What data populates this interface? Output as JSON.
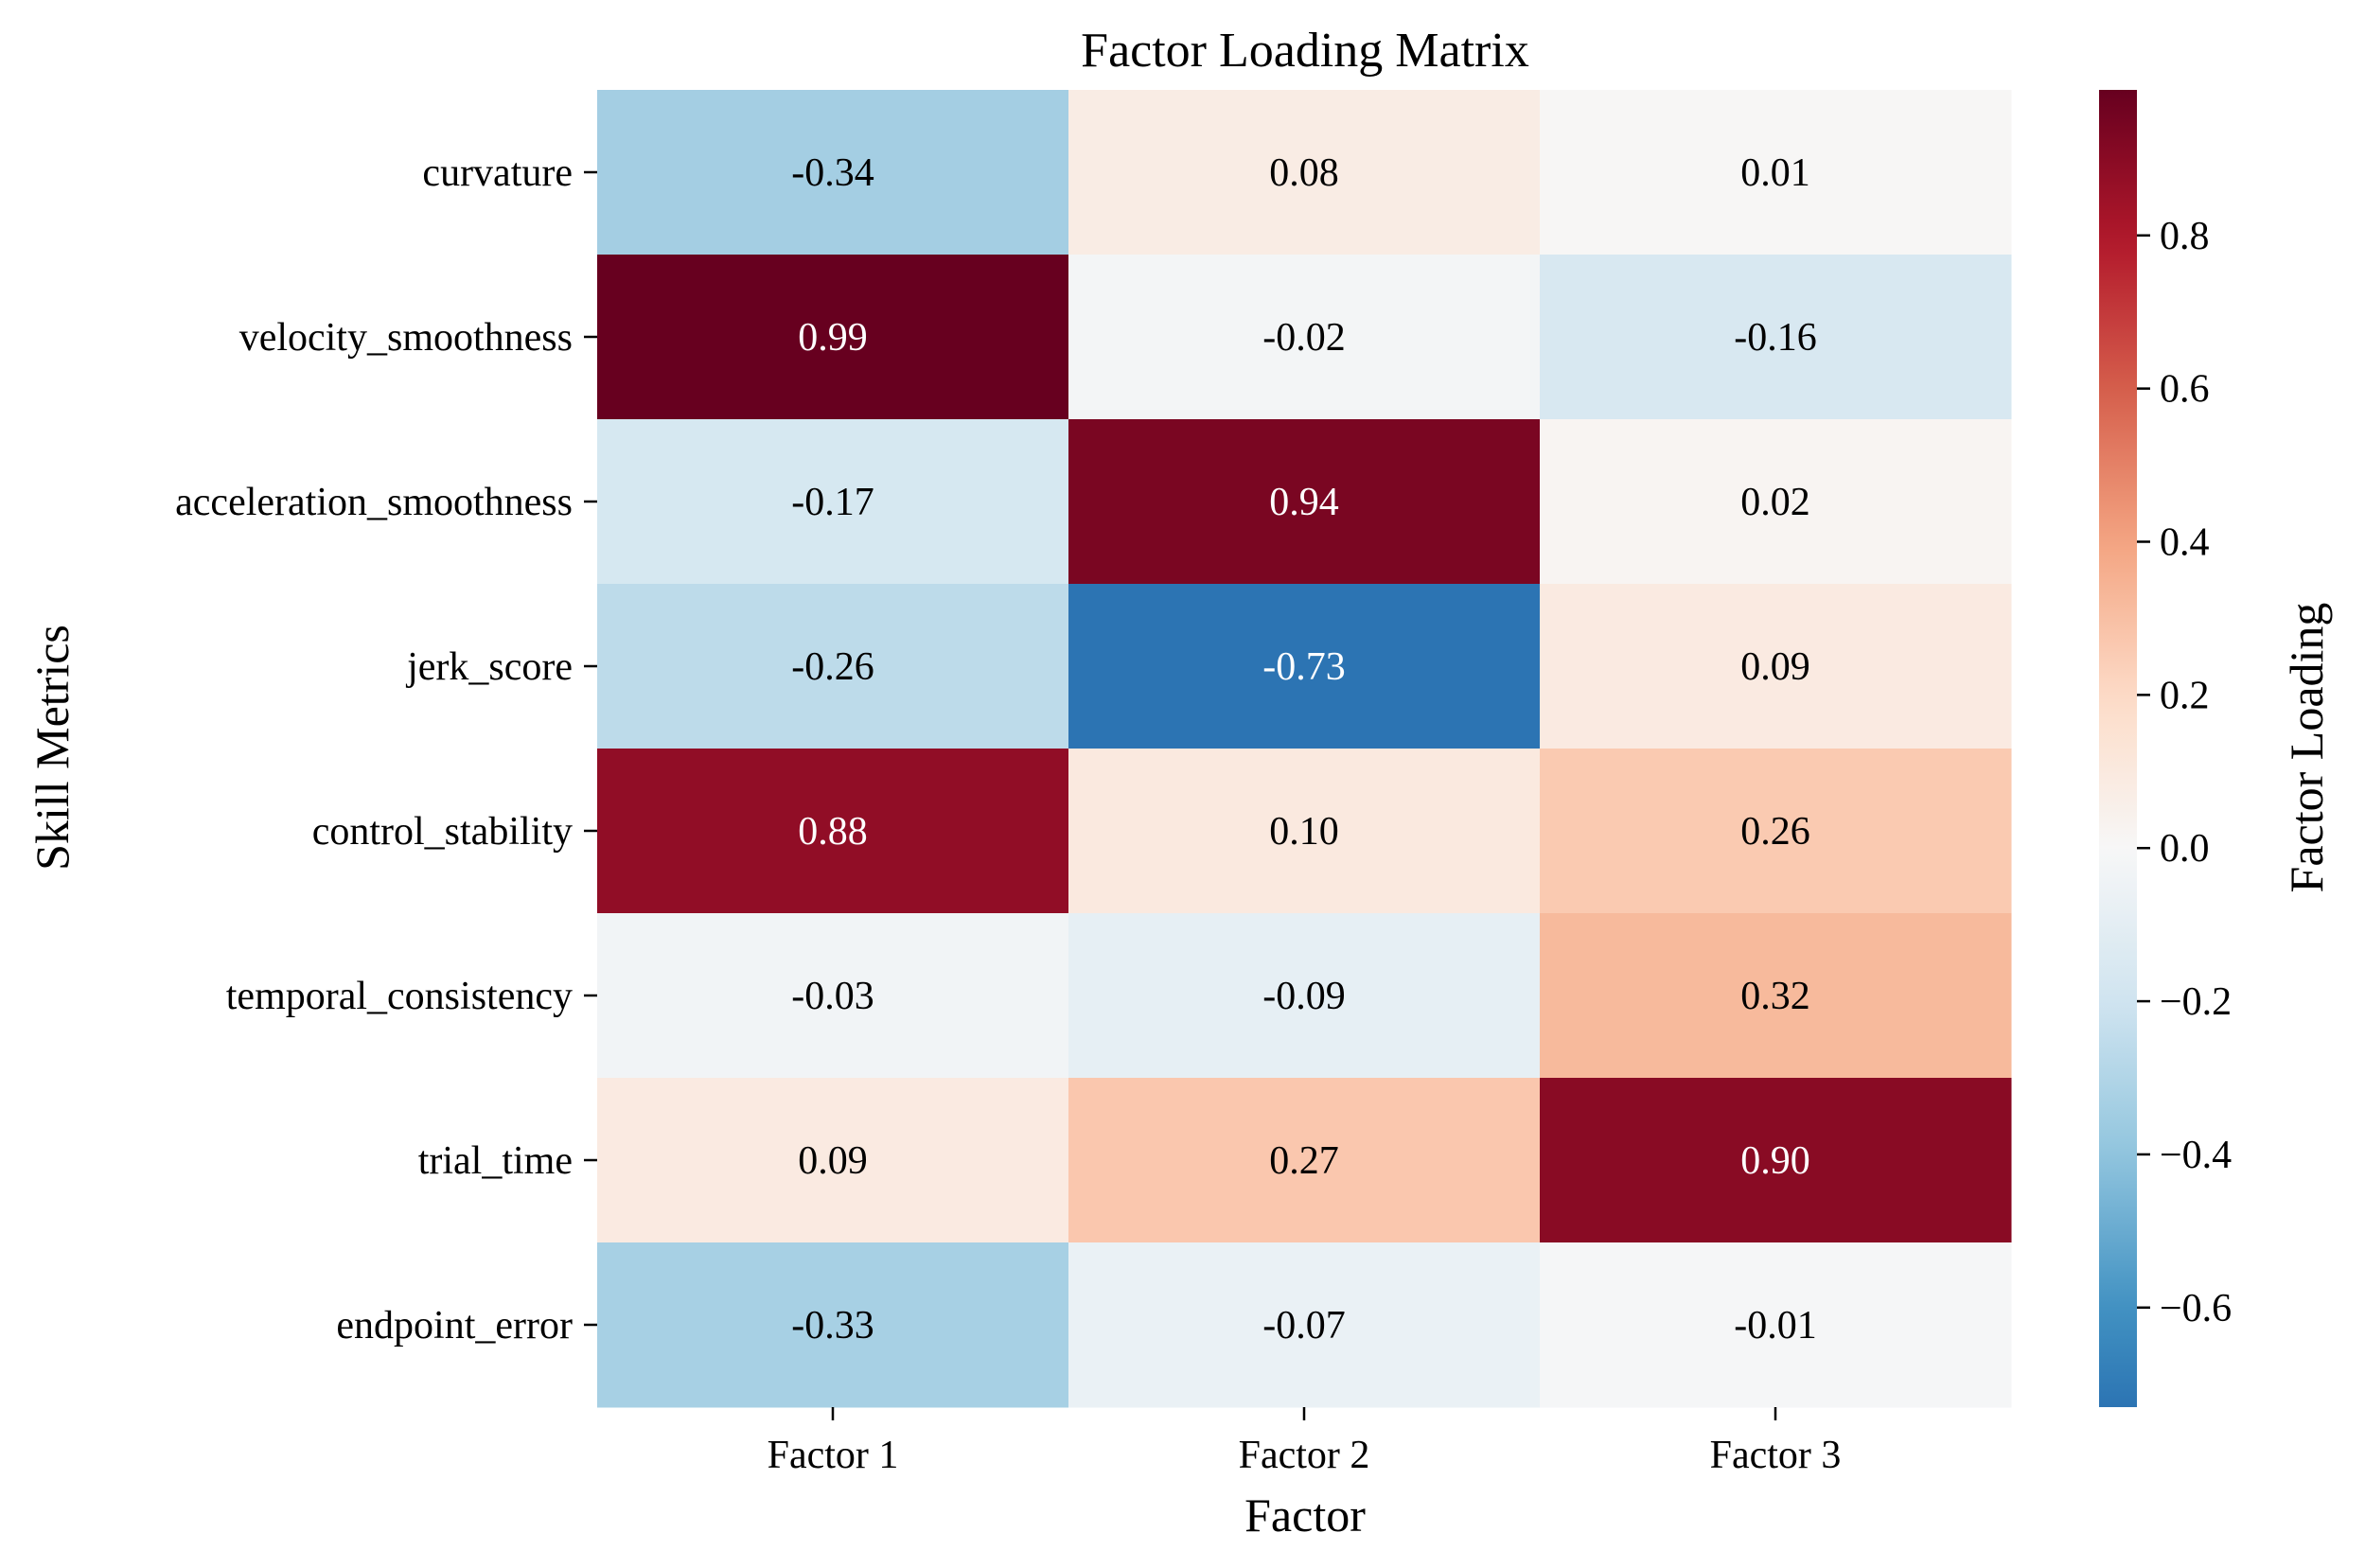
{
  "chart_data": {
    "type": "heatmap",
    "title": "Factor Loading Matrix",
    "xlabel": "Factor",
    "ylabel": "Skill Metrics",
    "columns": [
      "Factor 1",
      "Factor 2",
      "Factor 3"
    ],
    "rows": [
      "curvature",
      "velocity_smoothness",
      "acceleration_smoothness",
      "jerk_score",
      "control_stability",
      "temporal_consistency",
      "trial_time",
      "endpoint_error"
    ],
    "values": [
      [
        -0.34,
        0.08,
        0.01
      ],
      [
        0.99,
        -0.02,
        -0.16
      ],
      [
        -0.17,
        0.94,
        0.02
      ],
      [
        -0.26,
        -0.73,
        0.09
      ],
      [
        0.88,
        0.1,
        0.26
      ],
      [
        -0.03,
        -0.09,
        0.32
      ],
      [
        0.09,
        0.27,
        0.9
      ],
      [
        -0.33,
        -0.07,
        -0.01
      ]
    ],
    "value_format": "2 decimals",
    "colormap": "RdBu_r",
    "vmin": -0.73,
    "vmax": 0.99,
    "colorbar": {
      "label": "Factor Loading",
      "ticks": [
        -0.6,
        -0.4,
        -0.2,
        0.0,
        0.2,
        0.4,
        0.6,
        0.8
      ],
      "tick_labels": [
        "−0.6",
        "−0.4",
        "−0.2",
        "0.0",
        "0.2",
        "0.4",
        "0.6",
        "0.8"
      ],
      "placement": "right"
    }
  }
}
